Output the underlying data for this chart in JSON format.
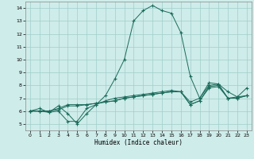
{
  "xlabel": "Humidex (Indice chaleur)",
  "xlim": [
    -0.5,
    23.5
  ],
  "ylim": [
    4.5,
    14.5
  ],
  "xticks": [
    0,
    1,
    2,
    3,
    4,
    5,
    6,
    7,
    8,
    9,
    10,
    11,
    12,
    13,
    14,
    15,
    16,
    17,
    18,
    19,
    20,
    21,
    22,
    23
  ],
  "yticks": [
    5,
    6,
    7,
    8,
    9,
    10,
    11,
    12,
    13,
    14
  ],
  "bg_color": "#ceecea",
  "grid_color": "#a0ceca",
  "line_color": "#1a6b5a",
  "curve1": [
    6.0,
    6.2,
    5.9,
    6.4,
    5.8,
    5.0,
    5.8,
    6.5,
    7.2,
    8.5,
    10.0,
    13.0,
    13.8,
    14.2,
    13.8,
    13.6,
    12.1,
    8.7,
    7.0,
    8.2,
    8.1,
    7.5,
    7.1,
    7.8
  ],
  "curve2": [
    6.0,
    6.0,
    5.9,
    6.0,
    5.2,
    5.2,
    6.2,
    6.5,
    6.8,
    7.0,
    7.1,
    7.2,
    7.3,
    7.4,
    7.5,
    7.6,
    7.5,
    6.7,
    7.0,
    8.0,
    8.1,
    7.0,
    7.1,
    7.2
  ],
  "curve3": [
    6.0,
    6.0,
    6.0,
    6.1,
    6.4,
    6.4,
    6.5,
    6.6,
    6.7,
    6.8,
    7.0,
    7.1,
    7.2,
    7.3,
    7.4,
    7.5,
    7.5,
    6.5,
    6.8,
    7.8,
    7.9,
    7.0,
    7.0,
    7.2
  ],
  "curve4": [
    6.0,
    6.0,
    6.0,
    6.2,
    6.5,
    6.5,
    6.5,
    6.6,
    6.7,
    6.8,
    7.0,
    7.1,
    7.2,
    7.3,
    7.4,
    7.5,
    7.5,
    6.5,
    6.8,
    7.9,
    8.0,
    7.0,
    7.0,
    7.2
  ]
}
